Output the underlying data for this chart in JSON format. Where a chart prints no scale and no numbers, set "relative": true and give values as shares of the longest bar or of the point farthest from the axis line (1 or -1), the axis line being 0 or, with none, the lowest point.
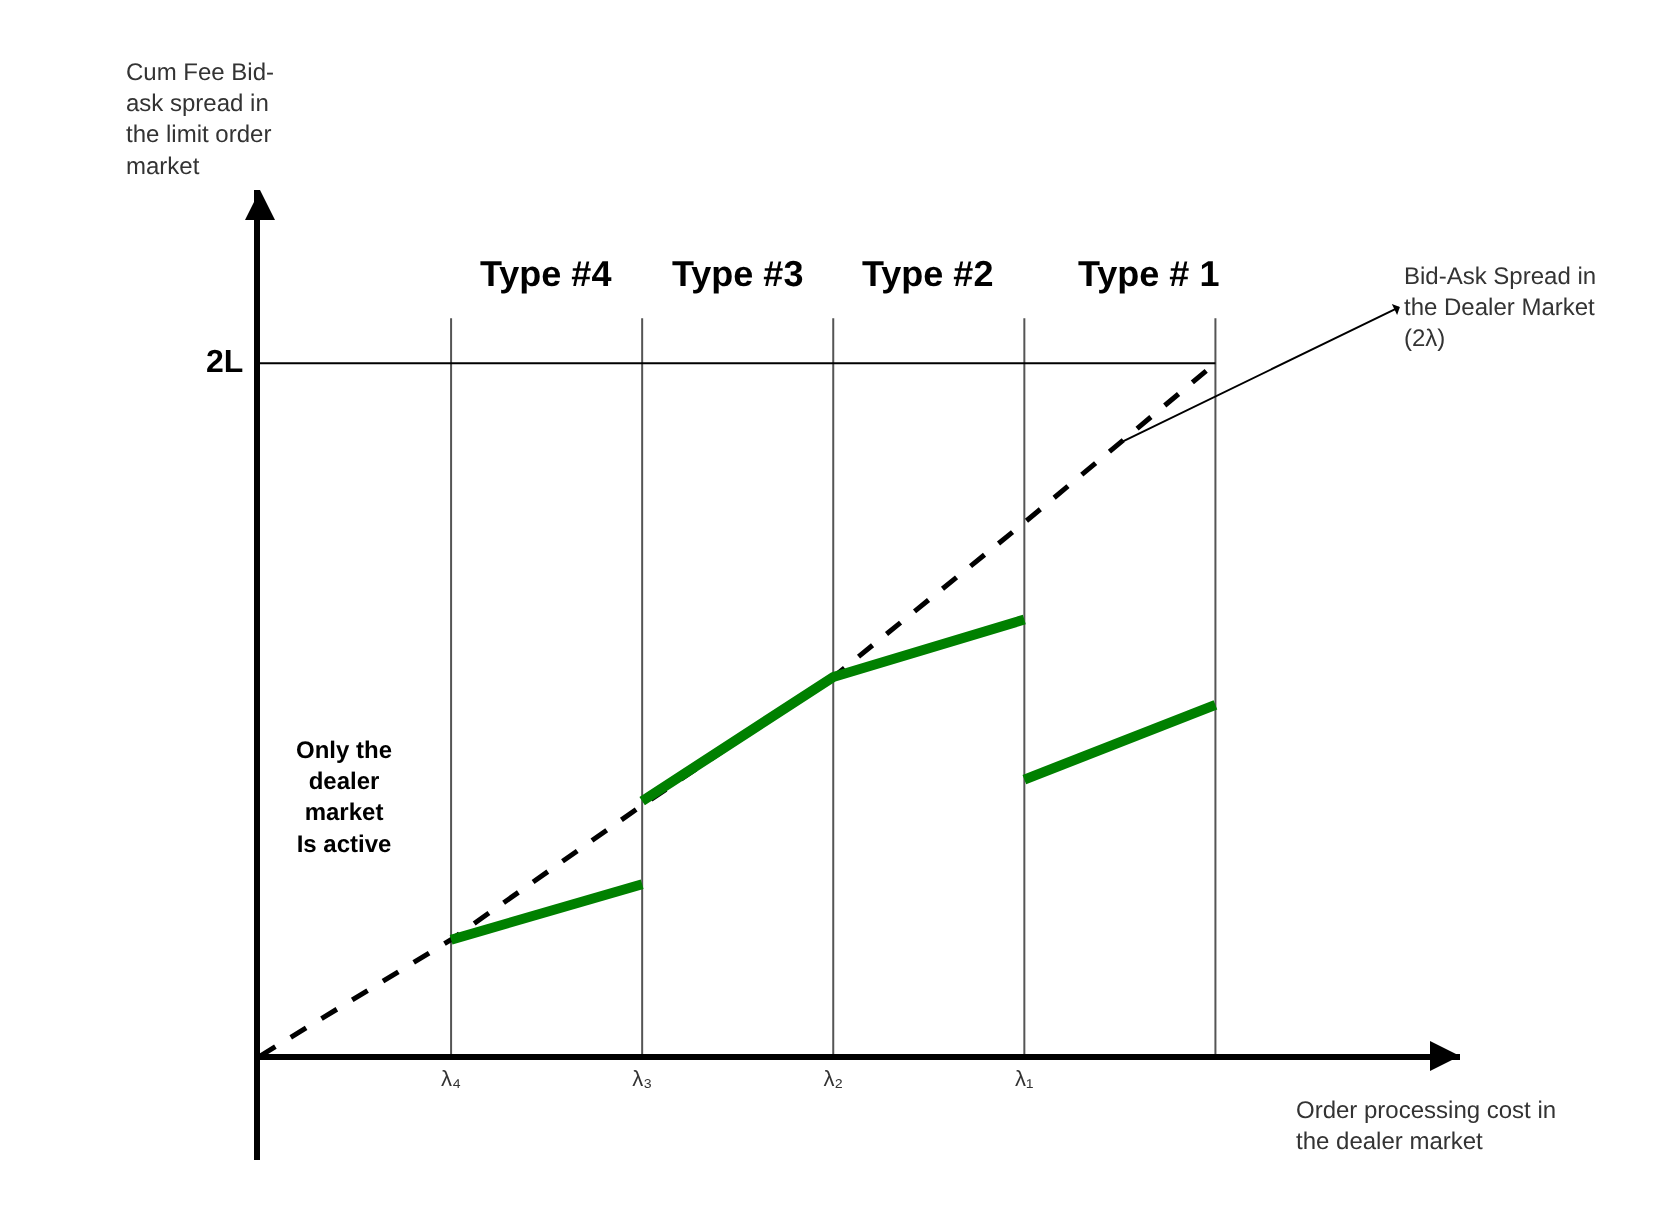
{
  "chart_data": {
    "type": "line",
    "relative": true,
    "xlabel": "Order processing cost in\nthe dealer market",
    "categories": [
      null,
      "λ₄",
      "λ₃",
      "λ₂",
      "λ₁",
      null
    ],
    "series": [
      {
        "values": [
          0,
          0.168,
          0.362,
          0.547,
          0.77,
          1
        ],
        "color": "#000000",
        "line_style": "dashed"
      },
      {
        "values": [
          null,
          0.168,
          0.248,
          null,
          null,
          null
        ],
        "color": "#008000",
        "line_style": "solid"
      },
      {
        "values": [
          null,
          null,
          0.368,
          0.547,
          0.63,
          null
        ],
        "color": "#008000",
        "line_style": "solid"
      },
      {
        "values": [
          null,
          null,
          null,
          null,
          0.399,
          0.507
        ],
        "color": "#008000",
        "line_style": "solid"
      }
    ],
    "ref_lines": [
      {
        "axis": "y",
        "value": 1,
        "label": "2L",
        "color": "#000000"
      }
    ],
    "annotations": [
      "Cum Fee Bid-\nask spread in\nthe limit order\nmarket",
      "Type #4",
      "Type #3",
      "Type #2",
      "Type # 1",
      "Only the\ndealer\nmarket\nIs active",
      "Bid-Ask Spread in\nthe Dealer Market\n(2λ)"
    ],
    "grid": "x",
    "marker": "none"
  }
}
